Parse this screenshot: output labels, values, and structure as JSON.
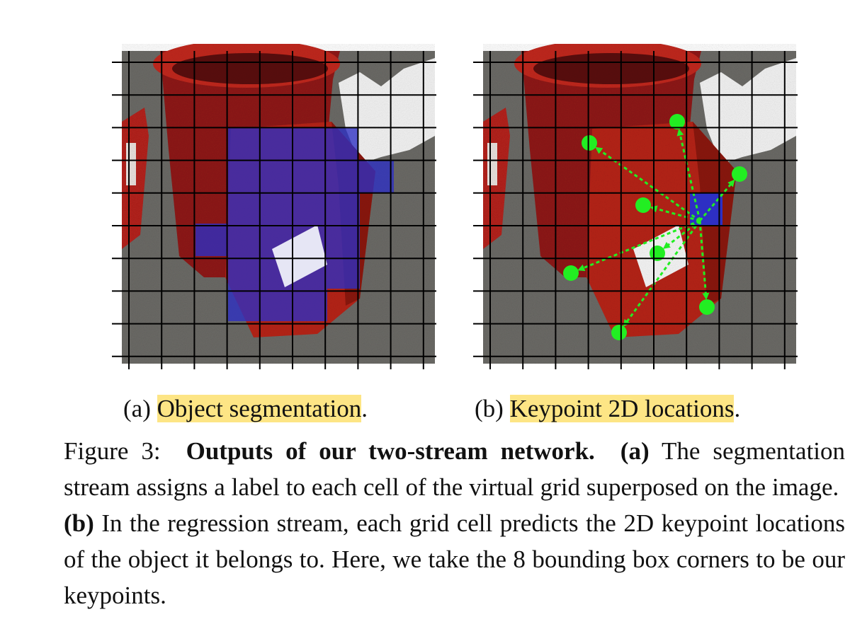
{
  "panels": {
    "a": {
      "label": "(a)",
      "title": "Object segmentation",
      "end": "."
    },
    "b": {
      "label": "(b)",
      "title": "Keypoint 2D locations",
      "end": "."
    }
  },
  "caption": {
    "figure_label": "Figure 3:",
    "heading": "Outputs of our two-stream network.",
    "part_a_label": "(a)",
    "part_a_text": "The segmentation stream assigns a label to each cell of the virtual grid superposed on the image.",
    "part_b_label": "(b)",
    "part_b_text": "In the regression stream, each grid cell predicts the 2D keypoint locations of the object it belongs to. Here, we take the 8 bounding box corners to be our keypoints."
  },
  "colors": {
    "segmentation_overlay": "#2d2fc4",
    "keypoint": "#22ee22",
    "object_red": "#b52218",
    "grid": "#000000",
    "highlight": "#fde585"
  }
}
